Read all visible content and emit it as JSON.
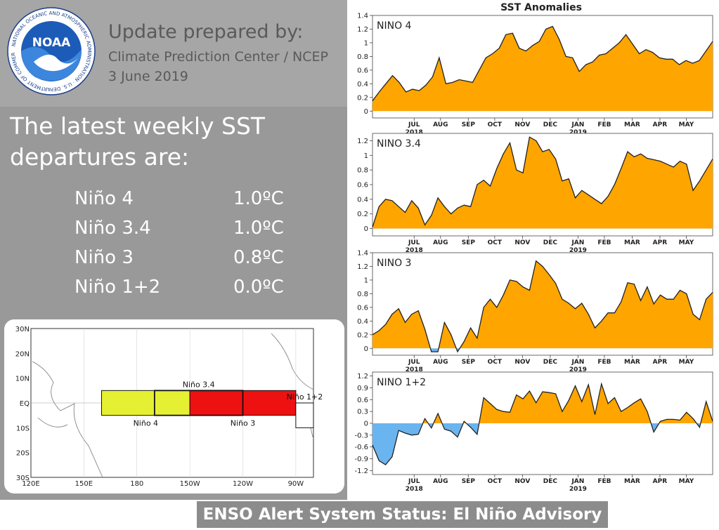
{
  "header": {
    "logo_text": "NOAA",
    "logo_ring_text": "NATIONAL OCEANIC AND ATMOSPHERIC ADMINISTRATION · U.S. DEPARTMENT OF COMMERCE",
    "title": "Update prepared by:",
    "org": "Climate Prediction Center / NCEP",
    "date": "3 June 2019"
  },
  "heading": "The latest weekly SST departures are:",
  "sst_rows": [
    {
      "region": "Niño 4",
      "value": "1.0ºC"
    },
    {
      "region": "Niño 3.4",
      "value": "1.0ºC"
    },
    {
      "region": "Niño 3",
      "value": "0.8ºC"
    },
    {
      "region": "Niño 1+2",
      "value": "0.0ºC"
    }
  ],
  "map": {
    "lat_labels": [
      "30N",
      "20N",
      "10N",
      "EQ",
      "10S",
      "20S",
      "30S"
    ],
    "lon_labels": [
      "120E",
      "150E",
      "180",
      "150W",
      "120W",
      "90W"
    ],
    "regions": [
      {
        "name": "Niño 4",
        "lon_range": [
          160,
          210
        ],
        "lat_range": [
          -5,
          5
        ],
        "color": "#e6f032"
      },
      {
        "name": "Niño 3",
        "lon_range": [
          210,
          270
        ],
        "lat_range": [
          -5,
          5
        ],
        "color": "#ee1111"
      },
      {
        "name": "Niño 3.4",
        "lon_range": [
          190,
          240
        ],
        "lat_range": [
          -5,
          5
        ],
        "color": "none"
      },
      {
        "name": "Niño 1+2",
        "lon_range": [
          270,
          280
        ],
        "lat_range": [
          -10,
          0
        ],
        "color": "#ffffff"
      }
    ]
  },
  "colors": {
    "positive": "#ffa500",
    "negative": "#6ab4f0"
  },
  "chart_data": {
    "type": "area",
    "title": "SST Anomalies",
    "month_labels": [
      "JUL",
      "AUG",
      "SEP",
      "OCT",
      "NOV",
      "DEC",
      "JAN",
      "FEB",
      "MAR",
      "APR",
      "MAY"
    ],
    "year_labels": [
      {
        "after": "JUL",
        "label": "2018"
      },
      {
        "after": "JAN",
        "label": "2019"
      }
    ],
    "x_range": [
      0,
      53
    ],
    "panels": [
      {
        "name": "NINO 4",
        "ylim": [
          -0.1,
          1.4
        ],
        "ticks": [
          0,
          0.2,
          0.4,
          0.6,
          0.8,
          1,
          1.2,
          1.4
        ],
        "values": [
          0.15,
          0.28,
          0.4,
          0.52,
          0.42,
          0.28,
          0.32,
          0.3,
          0.38,
          0.5,
          0.78,
          0.4,
          0.42,
          0.46,
          0.44,
          0.42,
          0.6,
          0.78,
          0.84,
          0.92,
          1.12,
          1.14,
          0.92,
          0.88,
          0.96,
          1.02,
          1.2,
          1.24,
          1.05,
          0.8,
          0.78,
          0.58,
          0.68,
          0.72,
          0.82,
          0.84,
          0.92,
          1.0,
          1.12,
          0.98,
          0.84,
          0.9,
          0.86,
          0.78,
          0.76,
          0.76,
          0.68,
          0.74,
          0.7,
          0.74,
          0.88,
          1.02
        ]
      },
      {
        "name": "NINO 3.4",
        "ylim": [
          -0.1,
          1.3
        ],
        "ticks": [
          0,
          0.2,
          0.4,
          0.6,
          0.8,
          1,
          1.2
        ],
        "values": [
          0.02,
          0.3,
          0.4,
          0.38,
          0.3,
          0.22,
          0.38,
          0.28,
          0.05,
          0.18,
          0.42,
          0.3,
          0.2,
          0.28,
          0.32,
          0.3,
          0.6,
          0.66,
          0.58,
          0.82,
          1.02,
          1.17,
          0.8,
          0.76,
          1.25,
          1.2,
          1.05,
          1.08,
          0.95,
          0.65,
          0.68,
          0.42,
          0.52,
          0.46,
          0.4,
          0.34,
          0.44,
          0.6,
          0.82,
          1.05,
          0.98,
          1.02,
          0.96,
          0.94,
          0.92,
          0.88,
          0.84,
          0.92,
          0.88,
          0.52,
          0.65,
          0.8,
          0.95
        ]
      },
      {
        "name": "NINO 3",
        "ylim": [
          -0.1,
          1.4
        ],
        "ticks": [
          0,
          0.2,
          0.4,
          0.6,
          0.8,
          1,
          1.2,
          1.4
        ],
        "values": [
          0.2,
          0.26,
          0.35,
          0.5,
          0.58,
          0.38,
          0.5,
          0.55,
          0.28,
          -0.05,
          -0.05,
          0.38,
          0.2,
          -0.05,
          0.1,
          0.3,
          0.15,
          0.6,
          0.72,
          0.6,
          0.78,
          1.0,
          0.98,
          0.9,
          0.85,
          1.28,
          1.2,
          1.08,
          0.95,
          0.72,
          0.66,
          0.58,
          0.66,
          0.5,
          0.3,
          0.4,
          0.52,
          0.52,
          0.68,
          0.96,
          0.94,
          0.7,
          0.9,
          0.65,
          0.78,
          0.72,
          0.72,
          0.85,
          0.8,
          0.5,
          0.42,
          0.72,
          0.82
        ]
      },
      {
        "name": "NINO 1+2",
        "ylim": [
          -1.3,
          1.3
        ],
        "ticks": [
          -1.2,
          -0.9,
          -0.6,
          -0.3,
          0,
          0.3,
          0.6,
          0.9,
          1.2
        ],
        "values": [
          -0.55,
          -0.95,
          -1.05,
          -0.85,
          -0.18,
          -0.25,
          -0.3,
          -0.28,
          0.12,
          -0.12,
          0.25,
          -0.15,
          -0.2,
          -0.35,
          0.05,
          -0.1,
          -0.28,
          0.65,
          0.5,
          0.35,
          0.3,
          0.28,
          0.72,
          0.62,
          0.82,
          0.52,
          0.8,
          0.78,
          0.75,
          0.3,
          0.58,
          0.95,
          0.55,
          0.98,
          0.22,
          1.0,
          0.5,
          0.65,
          0.3,
          0.4,
          0.52,
          0.62,
          0.3,
          -0.22,
          0.05,
          0.1,
          0.1,
          0.08,
          0.28,
          0.12,
          -0.1,
          0.55,
          0.05
        ]
      }
    ]
  },
  "status": "ENSO Alert System Status:  El Niño Advisory"
}
